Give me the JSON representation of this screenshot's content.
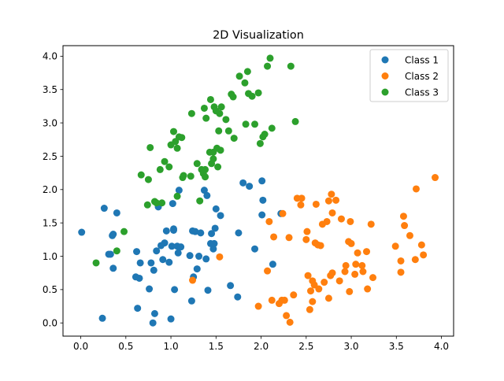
{
  "chart_data": {
    "type": "scatter",
    "title": "2D Visualization",
    "xlabel": "",
    "ylabel": "",
    "xlim": [
      -0.197,
      4.135
    ],
    "ylim": [
      -0.198,
      4.158
    ],
    "xticks": [
      0.0,
      0.5,
      1.0,
      1.5,
      2.0,
      2.5,
      3.0,
      3.5,
      4.0
    ],
    "xtick_labels": [
      "0.0",
      "0.5",
      "1.0",
      "1.5",
      "2.0",
      "2.5",
      "3.0",
      "3.5",
      "4.0"
    ],
    "yticks": [
      0.0,
      0.5,
      1.0,
      1.5,
      2.0,
      2.5,
      3.0,
      3.5,
      4.0
    ],
    "ytick_labels": [
      "0.0",
      "0.5",
      "1.0",
      "1.5",
      "2.0",
      "2.5",
      "3.0",
      "3.5",
      "4.0"
    ],
    "grid": false,
    "legend_position": "top-right",
    "series": [
      {
        "name": "Class 1",
        "color": "#1f77b4",
        "points": [
          [
            0.01,
            1.36
          ],
          [
            0.24,
            0.07
          ],
          [
            0.26,
            1.72
          ],
          [
            0.31,
            1.03
          ],
          [
            0.33,
            1.03
          ],
          [
            0.35,
            1.31
          ],
          [
            0.36,
            1.33
          ],
          [
            0.36,
            0.82
          ],
          [
            0.4,
            1.65
          ],
          [
            0.61,
            0.69
          ],
          [
            0.62,
            1.07
          ],
          [
            0.63,
            0.22
          ],
          [
            0.65,
            0.67
          ],
          [
            0.66,
            0.9
          ],
          [
            0.76,
            0.51
          ],
          [
            0.78,
            0.9
          ],
          [
            0.8,
            0.0
          ],
          [
            0.81,
            0.79
          ],
          [
            0.82,
            0.14
          ],
          [
            0.84,
            1.08
          ],
          [
            0.86,
            1.74
          ],
          [
            0.89,
            1.16
          ],
          [
            0.91,
            0.95
          ],
          [
            0.93,
            1.2
          ],
          [
            0.95,
            1.38
          ],
          [
            0.98,
            0.91
          ],
          [
            1.0,
            0.06
          ],
          [
            1.01,
            1.15
          ],
          [
            1.02,
            1.79
          ],
          [
            1.03,
            1.39
          ],
          [
            1.03,
            1.41
          ],
          [
            1.04,
            0.5
          ],
          [
            1.07,
            1.15
          ],
          [
            1.08,
            1.05
          ],
          [
            1.09,
            1.99
          ],
          [
            1.11,
            1.14
          ],
          [
            1.21,
            1.01
          ],
          [
            1.23,
            0.33
          ],
          [
            1.24,
            1.38
          ],
          [
            1.25,
            0.69
          ],
          [
            1.27,
            1.37
          ],
          [
            1.29,
            0.81
          ],
          [
            1.31,
            1.0
          ],
          [
            1.33,
            1.35
          ],
          [
            1.37,
            1.99
          ],
          [
            1.39,
            0.96
          ],
          [
            1.4,
            1.91
          ],
          [
            1.41,
            0.49
          ],
          [
            1.44,
            1.19
          ],
          [
            1.45,
            1.34
          ],
          [
            1.47,
            1.11
          ],
          [
            1.48,
            1.19
          ],
          [
            1.49,
            1.42
          ],
          [
            1.5,
            1.71
          ],
          [
            1.55,
            1.61
          ],
          [
            1.66,
            0.56
          ],
          [
            1.74,
            0.39
          ],
          [
            1.75,
            1.35
          ],
          [
            1.8,
            2.1
          ],
          [
            1.87,
            2.05
          ],
          [
            1.93,
            1.11
          ],
          [
            2.01,
            2.13
          ],
          [
            2.01,
            1.62
          ],
          [
            2.02,
            1.84
          ],
          [
            2.13,
            0.88
          ],
          [
            2.22,
            1.64
          ]
        ]
      },
      {
        "name": "Class 2",
        "color": "#ff7f0e",
        "points": [
          [
            1.24,
            0.64
          ],
          [
            1.54,
            0.99
          ],
          [
            1.97,
            0.25
          ],
          [
            2.07,
            0.78
          ],
          [
            2.09,
            1.52
          ],
          [
            2.12,
            0.34
          ],
          [
            2.14,
            1.29
          ],
          [
            2.2,
            0.29
          ],
          [
            2.23,
            0.34
          ],
          [
            2.24,
            1.64
          ],
          [
            2.26,
            0.34
          ],
          [
            2.28,
            0.11
          ],
          [
            2.31,
            1.28
          ],
          [
            2.32,
            0.01
          ],
          [
            2.36,
            0.42
          ],
          [
            2.4,
            1.87
          ],
          [
            2.44,
            1.77
          ],
          [
            2.45,
            1.87
          ],
          [
            2.5,
            1.25
          ],
          [
            2.51,
            1.37
          ],
          [
            2.52,
            0.71
          ],
          [
            2.54,
            0.2
          ],
          [
            2.55,
            0.48
          ],
          [
            2.57,
            0.63
          ],
          [
            2.57,
            0.32
          ],
          [
            2.59,
            0.57
          ],
          [
            2.6,
            1.2
          ],
          [
            2.61,
            1.78
          ],
          [
            2.63,
            1.17
          ],
          [
            2.64,
            0.51
          ],
          [
            2.66,
            1.16
          ],
          [
            2.68,
            1.48
          ],
          [
            2.7,
            0.61
          ],
          [
            2.73,
            1.52
          ],
          [
            2.75,
            1.83
          ],
          [
            2.75,
            0.37
          ],
          [
            2.77,
            0.71
          ],
          [
            2.78,
            1.93
          ],
          [
            2.79,
            1.65
          ],
          [
            2.79,
            0.75
          ],
          [
            2.83,
            1.84
          ],
          [
            2.87,
            0.63
          ],
          [
            2.89,
            1.56
          ],
          [
            2.93,
            0.77
          ],
          [
            2.94,
            0.86
          ],
          [
            2.97,
            1.22
          ],
          [
            2.98,
            0.47
          ],
          [
            2.99,
            1.52
          ],
          [
            3.0,
            1.19
          ],
          [
            3.04,
            0.73
          ],
          [
            3.05,
            0.88
          ],
          [
            3.07,
            1.05
          ],
          [
            3.12,
            0.86
          ],
          [
            3.13,
            0.77
          ],
          [
            3.17,
            1.07
          ],
          [
            3.18,
            0.51
          ],
          [
            3.22,
            1.48
          ],
          [
            3.24,
            0.68
          ],
          [
            3.49,
            1.15
          ],
          [
            3.55,
            0.76
          ],
          [
            3.55,
            0.93
          ],
          [
            3.58,
            1.6
          ],
          [
            3.59,
            1.46
          ],
          [
            3.65,
            1.31
          ],
          [
            3.71,
            0.95
          ],
          [
            3.72,
            2.01
          ],
          [
            3.78,
            1.17
          ],
          [
            3.8,
            1.02
          ],
          [
            3.93,
            2.18
          ]
        ]
      },
      {
        "name": "Class 3",
        "color": "#2ca02c",
        "points": [
          [
            0.17,
            0.9
          ],
          [
            0.4,
            1.08
          ],
          [
            0.48,
            1.37
          ],
          [
            0.67,
            2.22
          ],
          [
            0.74,
            1.77
          ],
          [
            0.75,
            2.15
          ],
          [
            0.77,
            2.63
          ],
          [
            0.82,
            1.82
          ],
          [
            0.84,
            1.8
          ],
          [
            0.88,
            2.3
          ],
          [
            0.9,
            1.8
          ],
          [
            0.93,
            2.42
          ],
          [
            0.98,
            2.34
          ],
          [
            1.0,
            2.67
          ],
          [
            1.03,
            2.87
          ],
          [
            1.05,
            2.72
          ],
          [
            1.07,
            2.62
          ],
          [
            1.07,
            1.9
          ],
          [
            1.09,
            2.79
          ],
          [
            1.12,
            2.78
          ],
          [
            1.13,
            2.18
          ],
          [
            1.14,
            2.21
          ],
          [
            1.22,
            2.2
          ],
          [
            1.23,
            3.14
          ],
          [
            1.29,
            2.39
          ],
          [
            1.32,
            1.83
          ],
          [
            1.34,
            2.3
          ],
          [
            1.36,
            2.24
          ],
          [
            1.37,
            3.22
          ],
          [
            1.38,
            2.19
          ],
          [
            1.38,
            2.3
          ],
          [
            1.39,
            3.07
          ],
          [
            1.43,
            2.56
          ],
          [
            1.44,
            3.35
          ],
          [
            1.45,
            2.39
          ],
          [
            1.47,
            2.46
          ],
          [
            1.47,
            2.56
          ],
          [
            1.48,
            3.24
          ],
          [
            1.5,
            3.18
          ],
          [
            1.51,
            2.62
          ],
          [
            1.52,
            2.34
          ],
          [
            1.53,
            2.88
          ],
          [
            1.54,
            3.14
          ],
          [
            1.55,
            2.59
          ],
          [
            1.56,
            3.24
          ],
          [
            1.61,
            3.05
          ],
          [
            1.64,
            2.88
          ],
          [
            1.67,
            3.43
          ],
          [
            1.69,
            3.39
          ],
          [
            1.7,
            2.77
          ],
          [
            1.76,
            3.7
          ],
          [
            1.82,
            3.6
          ],
          [
            1.83,
            2.98
          ],
          [
            1.85,
            3.77
          ],
          [
            1.86,
            3.44
          ],
          [
            1.9,
            3.4
          ],
          [
            1.93,
            2.98
          ],
          [
            1.97,
            3.45
          ],
          [
            1.99,
            2.69
          ],
          [
            2.02,
            2.79
          ],
          [
            2.04,
            2.83
          ],
          [
            2.07,
            3.85
          ],
          [
            2.1,
            3.97
          ],
          [
            2.12,
            2.92
          ],
          [
            2.33,
            3.85
          ],
          [
            2.38,
            3.02
          ]
        ]
      }
    ]
  }
}
